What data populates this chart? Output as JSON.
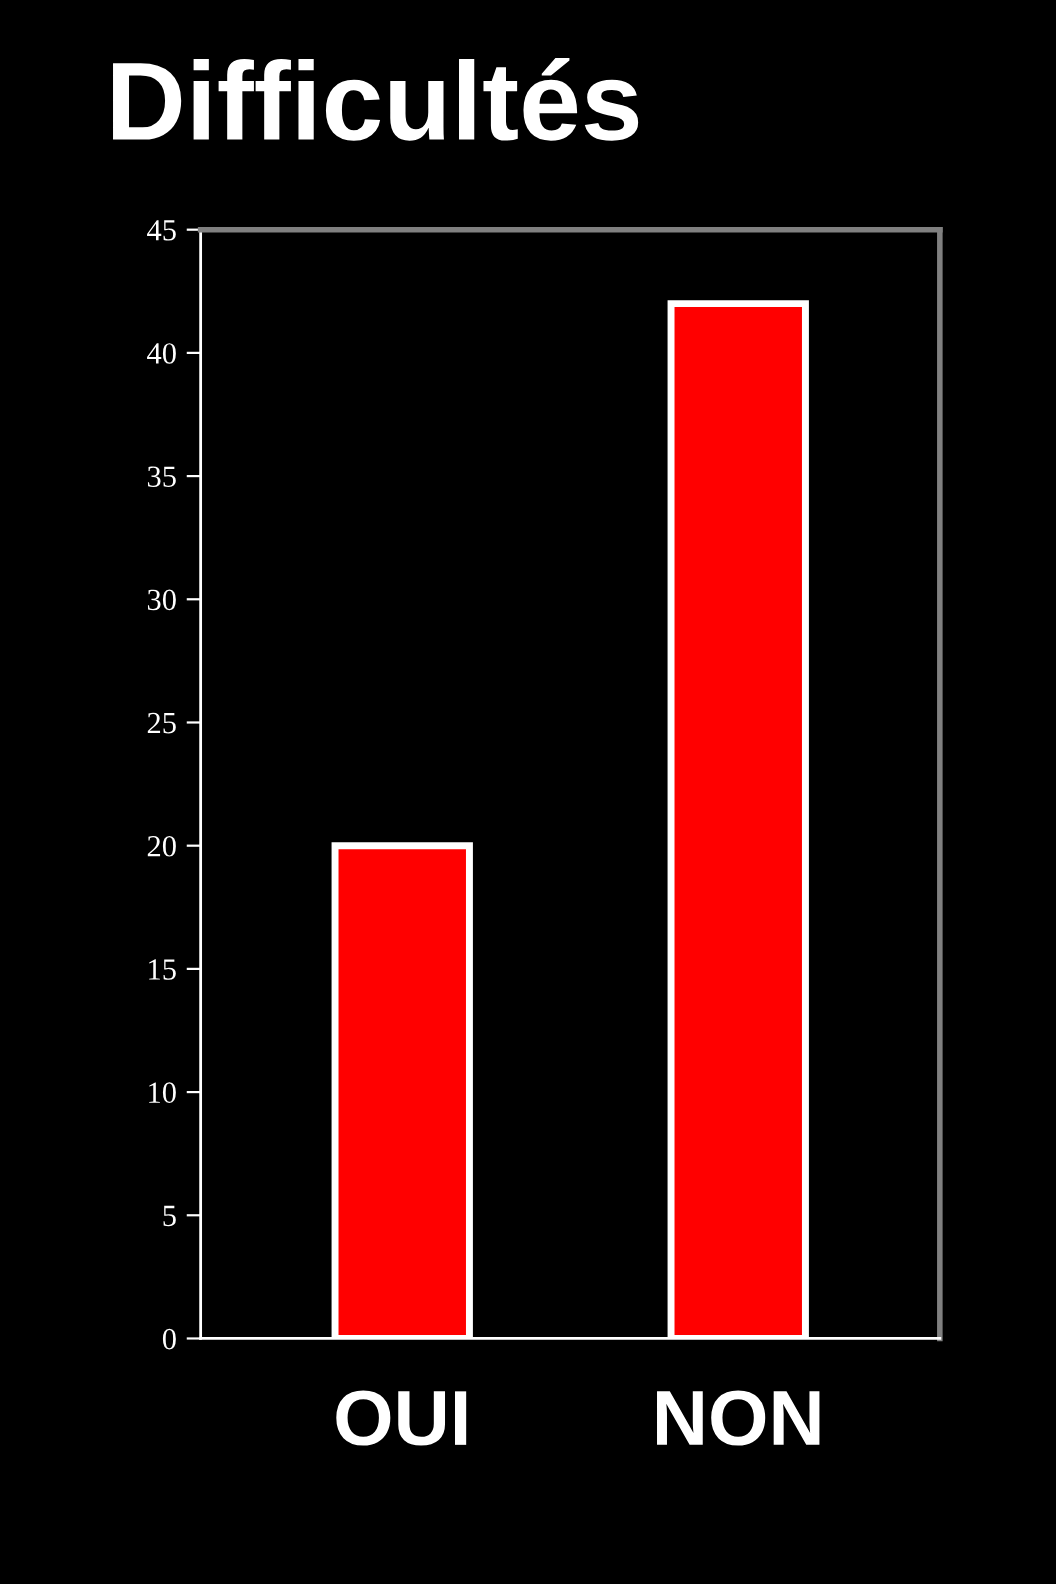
{
  "chart_data": {
    "type": "bar",
    "title": "Difficultés",
    "categories": [
      "OUI",
      "NON"
    ],
    "values": [
      20,
      42
    ],
    "color": "#ff0000",
    "ylim": [
      0,
      45
    ],
    "yticks": [
      0,
      5,
      10,
      15,
      20,
      25,
      30,
      35,
      40,
      45
    ],
    "grid": false
  }
}
